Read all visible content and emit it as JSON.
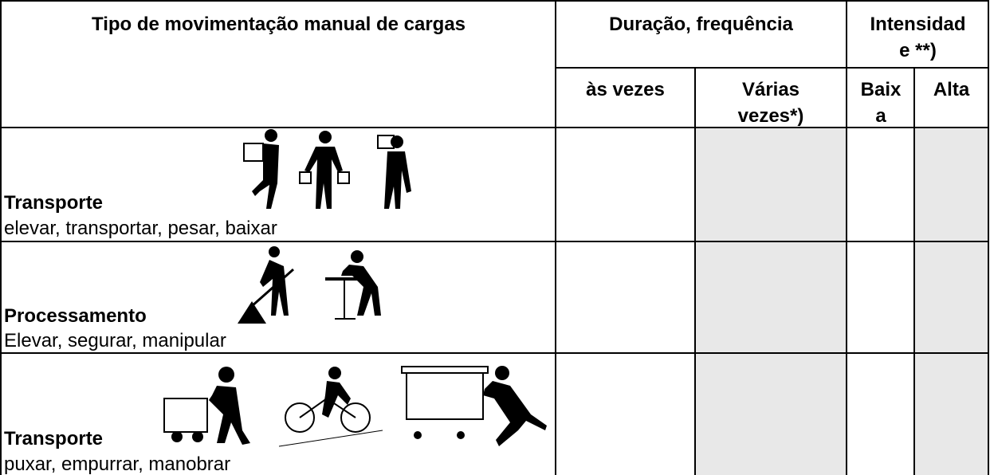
{
  "table": {
    "header": {
      "type": "Tipo de movimentação manual de cargas",
      "duration": "Duração, frequência",
      "intensity": "Intensidade **)",
      "subheaders": [
        "às vezes",
        "Várias vezes*)",
        "Baixa",
        "Alta"
      ]
    },
    "rows": [
      {
        "title": "Transporte",
        "actions": "elevar, transportar, pesar, baixar"
      },
      {
        "title": "Processamento",
        "actions": "Elevar, segurar, manipular"
      },
      {
        "title": "Transporte",
        "actions": "puxar, empurrar, manobrar"
      }
    ]
  }
}
